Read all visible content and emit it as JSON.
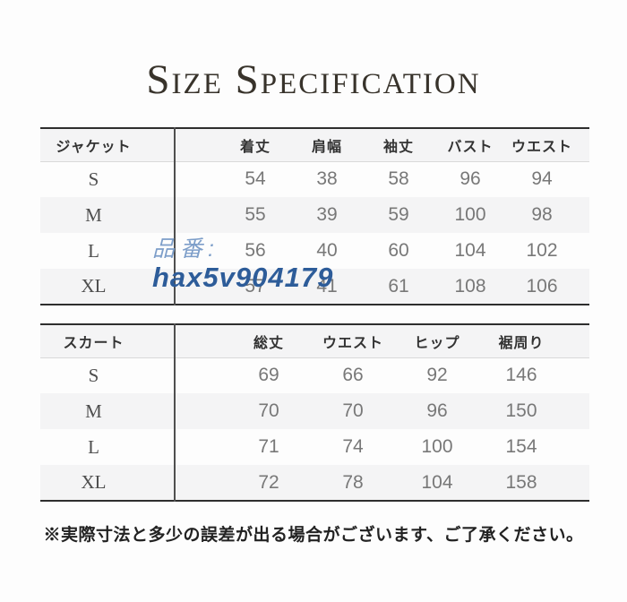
{
  "title": "Size Specification",
  "watermark": {
    "label": "品番:",
    "code": "hax5v904179"
  },
  "tables": [
    {
      "name": "ジャケット",
      "columns": [
        "着丈",
        "肩幅",
        "袖丈",
        "バスト",
        "ウエスト"
      ],
      "rows": [
        {
          "size": "S",
          "values": [
            54,
            38,
            58,
            96,
            94
          ]
        },
        {
          "size": "M",
          "values": [
            55,
            39,
            59,
            100,
            98
          ]
        },
        {
          "size": "L",
          "values": [
            56,
            40,
            60,
            104,
            102
          ]
        },
        {
          "size": "XL",
          "values": [
            57,
            41,
            61,
            108,
            106
          ]
        }
      ]
    },
    {
      "name": "スカート",
      "columns": [
        "総丈",
        "ウエスト",
        "ヒップ",
        "裾周り"
      ],
      "rows": [
        {
          "size": "S",
          "values": [
            69,
            66,
            92,
            146
          ]
        },
        {
          "size": "M",
          "values": [
            70,
            70,
            96,
            150
          ]
        },
        {
          "size": "L",
          "values": [
            71,
            74,
            100,
            154
          ]
        },
        {
          "size": "XL",
          "values": [
            72,
            78,
            104,
            158
          ]
        }
      ]
    }
  ],
  "note": "※実際寸法と多少の誤差が出る場合がございます、ご了承ください。",
  "colors": {
    "page_background": "#fdfdfd",
    "title_text": "#38332b",
    "table_border_dark": "#2e2e2e",
    "column_divider": "#4f4f4f",
    "row_shade": "#f4f4f5",
    "header_text": "#333333",
    "value_text": "#787878",
    "watermark_label_blue": "#7d9ec9",
    "watermark_code_blue": "#2d5c99",
    "note_text": "#222222"
  }
}
